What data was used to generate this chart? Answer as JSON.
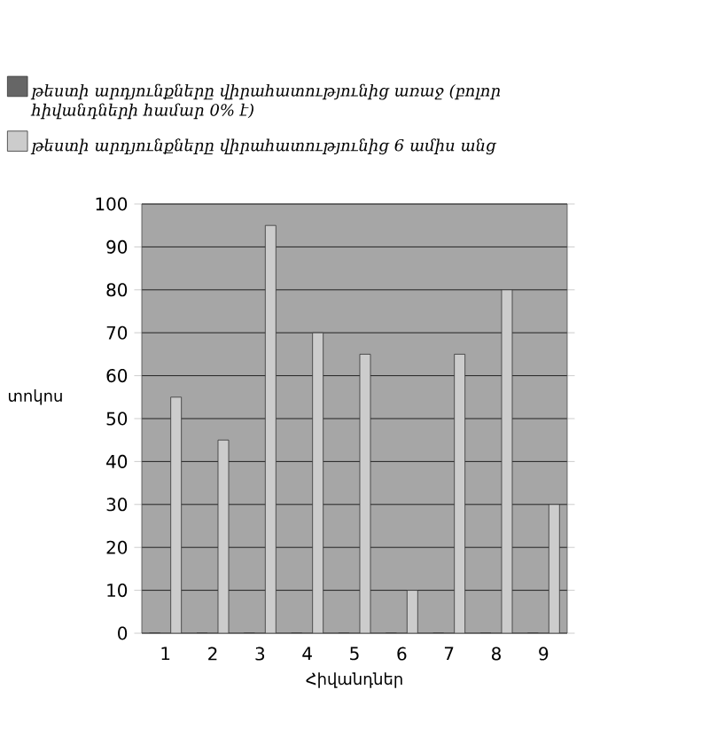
{
  "chart_data": {
    "type": "bar",
    "xlabel": "Հիվանդներ",
    "ylabel": "տոկոս",
    "categories": [
      "1",
      "2",
      "3",
      "4",
      "5",
      "6",
      "7",
      "8",
      "9"
    ],
    "series": [
      {
        "name": "թեստի արդյունքները վիրահատությունից առաջ (բոլոր հիվանդների համար 0% է)",
        "color": "#666666",
        "values": [
          0,
          0,
          0,
          0,
          0,
          0,
          0,
          0,
          0
        ]
      },
      {
        "name": "թեստի արդյունքները վիրահատությունից 6 ամիս անց",
        "color": "#cccccc",
        "values": [
          55,
          45,
          95,
          70,
          65,
          10,
          65,
          80,
          30
        ]
      }
    ],
    "ylim": [
      0,
      100
    ],
    "yticks": [
      0,
      10,
      20,
      30,
      40,
      50,
      60,
      70,
      80,
      90,
      100
    ],
    "grid": "y",
    "legend": "top left"
  }
}
